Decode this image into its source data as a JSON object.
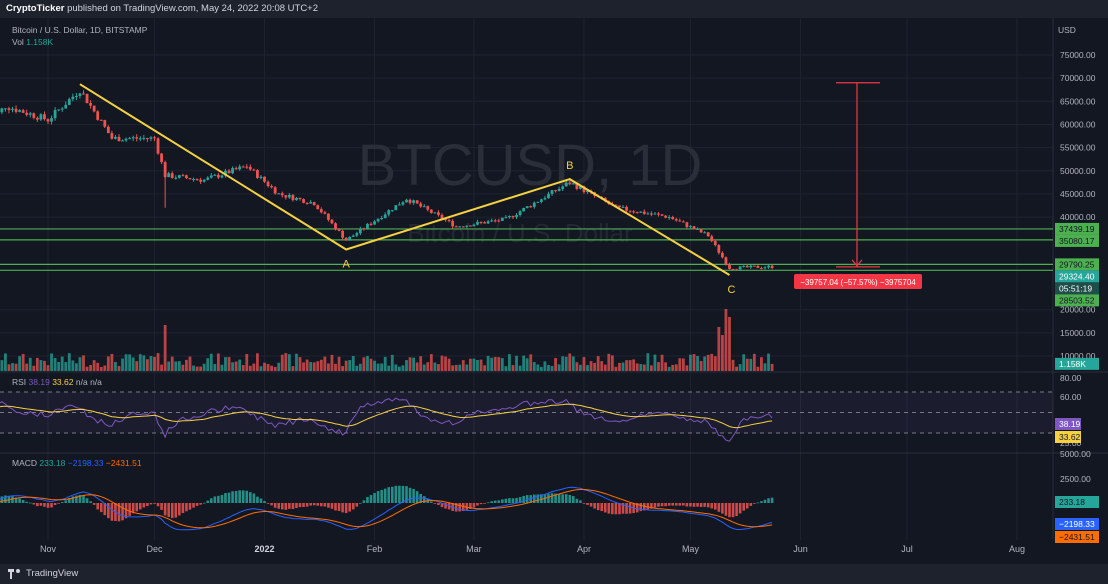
{
  "header": {
    "publisher": "CryptoTicker",
    "published_text": "published on TradingView.com, May 24, 2022 20:08 UTC+2"
  },
  "symbol_info": "Bitcoin / U.S. Dollar, 1D, BITSTAMP",
  "vol_label": "Vol",
  "vol_value": "1.158K",
  "currency": "USD",
  "watermark": "BTCUSD, 1D",
  "watermark_sub": "Bitcoin / U.S. Dollar",
  "footer_brand": "TradingView",
  "measure_label": "−39757.04 (−57.57%) −3975704",
  "rsi_legend": {
    "name": "RSI",
    "v1": "38.19",
    "v2": "33.62",
    "v3": "n/a",
    "v4": "n/a"
  },
  "macd_legend": {
    "name": "MACD",
    "v1": "233.18",
    "v2": "−2198.33",
    "v3": "−2431.51"
  },
  "colors": {
    "bg": "#131722",
    "up": "#26a69a",
    "down": "#ef5350",
    "trend": "#f5d142",
    "hline": "#4caf50",
    "rsi": "#7e57c2",
    "rsi_ma": "#f5d142",
    "macd": "#2962ff",
    "signal": "#ff6d00",
    "measure": "#f23645"
  },
  "chart_data": [
    {
      "type": "candlestick",
      "title": "Bitcoin / U.S. Dollar, 1D, BITSTAMP",
      "x_ticks": [
        "Nov",
        "Dec",
        "2022",
        "Feb",
        "Mar",
        "Apr",
        "May",
        "Jun",
        "Jul",
        "Aug"
      ],
      "y_ticks": [
        "75000.00",
        "70000.00",
        "65000.00",
        "60000.00",
        "55000.00",
        "50000.00",
        "45000.00",
        "40000.00",
        "20000.00",
        "15000.00",
        "10000.00"
      ],
      "ylim": [
        7000,
        78000
      ],
      "price_tags": [
        {
          "label": "37439.19",
          "value": 37439.19,
          "kind": "level"
        },
        {
          "label": "35080.17",
          "value": 35080.17,
          "kind": "level"
        },
        {
          "label": "29790.25",
          "value": 29790.25,
          "kind": "level"
        },
        {
          "label": "29324.40",
          "value": 29324.4,
          "kind": "current"
        },
        {
          "label": "05:51:19",
          "value": 27900,
          "kind": "countdown"
        },
        {
          "label": "28503.52",
          "value": 26700,
          "kind": "level"
        },
        {
          "label": "1.158K",
          "value": 8300,
          "kind": "volume"
        }
      ],
      "horizontal_levels": [
        37439.19,
        35080.17,
        29790.25,
        28503.52
      ],
      "pattern_points": [
        {
          "label": "",
          "date": "2021-11-10",
          "price": 68700
        },
        {
          "label": "A",
          "date": "2022-01-24",
          "price": 33000
        },
        {
          "label": "B",
          "date": "2022-03-28",
          "price": 48200
        },
        {
          "label": "C",
          "date": "2022-05-12",
          "price": 27500
        }
      ],
      "key_series": [
        {
          "date": "2021-10-15",
          "price": 60000
        },
        {
          "date": "2021-10-20",
          "price": 64000
        },
        {
          "date": "2021-11-01",
          "price": 61000
        },
        {
          "date": "2021-11-10",
          "price": 67500
        },
        {
          "date": "2021-11-19",
          "price": 57000
        },
        {
          "date": "2021-12-01",
          "price": 57000
        },
        {
          "date": "2021-12-04",
          "price": 49000
        },
        {
          "date": "2021-12-15",
          "price": 48000
        },
        {
          "date": "2021-12-27",
          "price": 51000
        },
        {
          "date": "2022-01-05",
          "price": 45000
        },
        {
          "date": "2022-01-15",
          "price": 43000
        },
        {
          "date": "2022-01-24",
          "price": 35000
        },
        {
          "date": "2022-02-10",
          "price": 44000
        },
        {
          "date": "2022-02-24",
          "price": 38000
        },
        {
          "date": "2022-03-10",
          "price": 39500
        },
        {
          "date": "2022-03-28",
          "price": 47500
        },
        {
          "date": "2022-04-10",
          "price": 42000
        },
        {
          "date": "2022-04-25",
          "price": 40000
        },
        {
          "date": "2022-05-06",
          "price": 36000
        },
        {
          "date": "2022-05-12",
          "price": 29000
        },
        {
          "date": "2022-05-24",
          "price": 29300
        }
      ],
      "measure": {
        "from_price": 69000,
        "to_price": 29250,
        "change": -39757.04,
        "percent": -57.57
      }
    },
    {
      "type": "line",
      "title": "RSI",
      "y_ticks": [
        "80.00",
        "60.00",
        "25.00"
      ],
      "ylim": [
        22,
        82
      ],
      "value_tags": [
        "38.19",
        "33.62"
      ],
      "bands": [
        70,
        30
      ]
    },
    {
      "type": "line",
      "title": "MACD",
      "y_ticks": [
        "5000.00",
        "2500.00"
      ],
      "value_tags": [
        "233.18",
        "−2198.33",
        "−2431.51"
      ]
    }
  ]
}
